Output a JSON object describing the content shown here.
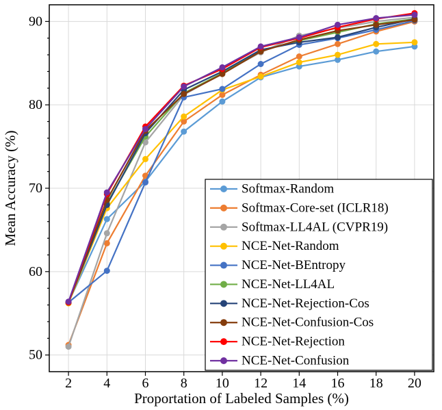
{
  "chart_data": {
    "type": "line",
    "title": "",
    "xlabel": "Proportation of Labeled Samples (%)",
    "ylabel": "Mean Accuracy (%)",
    "x": [
      2,
      4,
      6,
      8,
      10,
      12,
      14,
      16,
      18,
      20
    ],
    "xlim": [
      1,
      21
    ],
    "ylim": [
      48,
      92
    ],
    "xticks": [
      2,
      4,
      6,
      8,
      10,
      12,
      14,
      16,
      18,
      20
    ],
    "yticks": [
      50,
      60,
      70,
      80,
      90
    ],
    "grid": true,
    "grid_color": "#d9d9d9",
    "legend_position": "inside-lower-right",
    "marker": "circle",
    "series": [
      {
        "name": "Softmax-Random",
        "color": "#5B9BD5",
        "values": [
          56.3,
          66.3,
          70.8,
          76.8,
          80.4,
          83.3,
          84.6,
          85.4,
          86.4,
          87.0
        ]
      },
      {
        "name": "Softmax-Core-set (ICLR18)",
        "color": "#ED7D31",
        "values": [
          51.2,
          63.4,
          71.5,
          78.0,
          81.2,
          83.6,
          85.8,
          87.3,
          88.8,
          90.0
        ]
      },
      {
        "name": "Softmax-LL4AL (CVPR19)",
        "color": "#A5A5A5",
        "values": [
          51.0,
          64.6,
          75.5,
          81.2,
          83.8,
          86.3,
          88.3,
          89.2,
          90.0,
          90.5
        ]
      },
      {
        "name": "NCE-Net-Random",
        "color": "#FFC000",
        "values": [
          56.2,
          67.6,
          73.5,
          78.6,
          81.8,
          83.4,
          85.1,
          86.0,
          87.3,
          87.5
        ]
      },
      {
        "name": "NCE-Net-BEntropy",
        "color": "#4472C4",
        "values": [
          56.3,
          60.1,
          70.7,
          80.9,
          81.9,
          84.9,
          87.2,
          88.0,
          89.0,
          90.1
        ]
      },
      {
        "name": "NCE-Net-LL4AL",
        "color": "#70AD47",
        "values": [
          56.3,
          68.2,
          76.2,
          81.4,
          83.8,
          86.5,
          87.7,
          88.7,
          89.7,
          90.3
        ]
      },
      {
        "name": "NCE-Net-Rejection-Cos",
        "color": "#264478",
        "values": [
          56.3,
          68.0,
          76.6,
          81.8,
          84.0,
          86.6,
          87.5,
          88.1,
          89.3,
          90.3
        ]
      },
      {
        "name": "NCE-Net-Confusion-Cos",
        "color": "#843C0C",
        "values": [
          56.3,
          68.6,
          76.9,
          81.3,
          83.7,
          86.4,
          87.8,
          88.9,
          89.6,
          90.2
        ]
      },
      {
        "name": "NCE-Net-Rejection",
        "color": "#FF0000",
        "values": [
          56.3,
          69.3,
          77.4,
          82.3,
          84.3,
          86.9,
          88.0,
          89.3,
          90.3,
          91.0
        ]
      },
      {
        "name": "NCE-Net-Confusion",
        "color": "#7030A0",
        "values": [
          56.4,
          69.5,
          77.1,
          82.2,
          84.5,
          87.0,
          88.1,
          89.6,
          90.4,
          90.8
        ]
      }
    ]
  }
}
